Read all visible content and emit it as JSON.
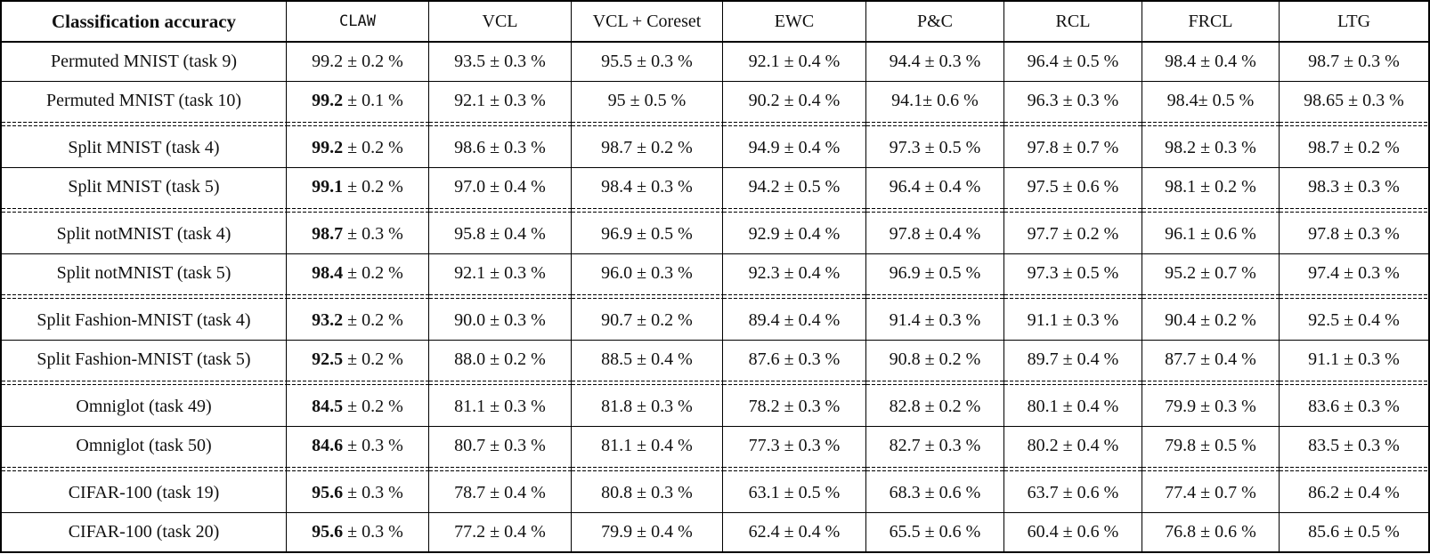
{
  "colors": {
    "border": "#000000",
    "text": "#111111",
    "background": "#ffffff"
  },
  "table": {
    "header": [
      "Classification accuracy",
      "CLAW",
      "VCL",
      "VCL + Coreset",
      "EWC",
      "P&C",
      "RCL",
      "FRCL",
      "LTG"
    ],
    "rows": [
      {
        "label": "Permuted MNIST (task 9)",
        "claw": {
          "value": "99.2",
          "pm": "± 0.2 %",
          "bold": false
        },
        "others": [
          "93.5 ± 0.3 %",
          "95.5 ± 0.3 %",
          "92.1 ± 0.4 %",
          "94.4 ± 0.3 %",
          "96.4 ± 0.5 %",
          "98.4 ± 0.4 %",
          "98.7 ± 0.3 %"
        ]
      },
      {
        "label": "Permuted MNIST (task 10)",
        "claw": {
          "value": "99.2",
          "pm": "± 0.1 %",
          "bold": true
        },
        "others": [
          "92.1 ± 0.3 %",
          "95 ± 0.5 %",
          "90.2 ± 0.4 %",
          "94.1± 0.6 %",
          "96.3 ± 0.3 %",
          "98.4± 0.5 %",
          "98.65 ± 0.3 %"
        ]
      },
      {
        "label": "Split MNIST (task 4)",
        "claw": {
          "value": "99.2",
          "pm": "± 0.2 %",
          "bold": true
        },
        "others": [
          "98.6 ± 0.3 %",
          "98.7 ± 0.2 %",
          "94.9 ± 0.4 %",
          "97.3 ± 0.5 %",
          "97.8 ± 0.7 %",
          "98.2 ± 0.3 %",
          "98.7 ± 0.2 %"
        ]
      },
      {
        "label": "Split MNIST (task 5)",
        "claw": {
          "value": "99.1",
          "pm": "± 0.2 %",
          "bold": true
        },
        "others": [
          "97.0 ± 0.4 %",
          "98.4 ± 0.3 %",
          "94.2 ± 0.5 %",
          "96.4 ± 0.4 %",
          "97.5 ± 0.6 %",
          "98.1 ± 0.2 %",
          "98.3 ± 0.3 %"
        ]
      },
      {
        "label": "Split notMNIST (task 4)",
        "claw": {
          "value": "98.7",
          "pm": "± 0.3 %",
          "bold": true
        },
        "others": [
          "95.8 ± 0.4 %",
          "96.9 ± 0.5 %",
          "92.9 ± 0.4 %",
          "97.8 ± 0.4 %",
          "97.7 ± 0.2 %",
          "96.1 ± 0.6 %",
          "97.8 ± 0.3 %"
        ]
      },
      {
        "label": "Split notMNIST (task 5)",
        "claw": {
          "value": "98.4",
          "pm": "± 0.2 %",
          "bold": true
        },
        "others": [
          "92.1 ± 0.3 %",
          "96.0 ± 0.3 %",
          "92.3 ± 0.4 %",
          "96.9 ± 0.5 %",
          "97.3 ± 0.5 %",
          "95.2 ± 0.7 %",
          "97.4 ± 0.3 %"
        ]
      },
      {
        "label": "Split Fashion-MNIST (task 4)",
        "claw": {
          "value": "93.2",
          "pm": "± 0.2 %",
          "bold": true
        },
        "others": [
          "90.0 ± 0.3 %",
          "90.7 ± 0.2 %",
          "89.4 ± 0.4 %",
          "91.4 ± 0.3 %",
          "91.1 ± 0.3 %",
          "90.4 ± 0.2 %",
          "92.5 ± 0.4 %"
        ]
      },
      {
        "label": "Split Fashion-MNIST (task 5)",
        "claw": {
          "value": "92.5",
          "pm": "± 0.2 %",
          "bold": true
        },
        "others": [
          "88.0 ± 0.2 %",
          "88.5 ± 0.4 %",
          "87.6 ± 0.3 %",
          "90.8 ± 0.2 %",
          "89.7 ± 0.4 %",
          "87.7 ± 0.4 %",
          "91.1 ± 0.3 %"
        ]
      },
      {
        "label": "Omniglot (task 49)",
        "claw": {
          "value": "84.5",
          "pm": "± 0.2 %",
          "bold": true
        },
        "others": [
          "81.1 ± 0.3 %",
          "81.8 ± 0.3 %",
          "78.2 ± 0.3 %",
          "82.8 ± 0.2 %",
          "80.1 ± 0.4 %",
          "79.9 ± 0.3 %",
          "83.6 ± 0.3 %"
        ]
      },
      {
        "label": "Omniglot (task 50)",
        "claw": {
          "value": "84.6",
          "pm": "± 0.3 %",
          "bold": true
        },
        "others": [
          "80.7 ± 0.3 %",
          "81.1 ± 0.4 %",
          "77.3 ± 0.3 %",
          "82.7 ± 0.3 %",
          "80.2 ± 0.4 %",
          "79.8 ± 0.5 %",
          "83.5 ± 0.3 %"
        ]
      },
      {
        "label": "CIFAR-100 (task 19)",
        "claw": {
          "value": "95.6",
          "pm": "± 0.3 %",
          "bold": true
        },
        "others": [
          "78.7 ± 0.4 %",
          "80.8 ± 0.3 %",
          "63.1 ± 0.5 %",
          "68.3 ± 0.6 %",
          "63.7 ± 0.6 %",
          "77.4 ± 0.7 %",
          "86.2 ± 0.4 %"
        ]
      },
      {
        "label": "CIFAR-100 (task 20)",
        "claw": {
          "value": "95.6",
          "pm": "± 0.3 %",
          "bold": true
        },
        "others": [
          "77.2 ± 0.4 %",
          "79.9 ± 0.4 %",
          "62.4 ± 0.4 %",
          "65.5 ± 0.6 %",
          "60.4 ± 0.6 %",
          "76.8 ± 0.6 %",
          "85.6 ± 0.5 %"
        ]
      }
    ]
  }
}
